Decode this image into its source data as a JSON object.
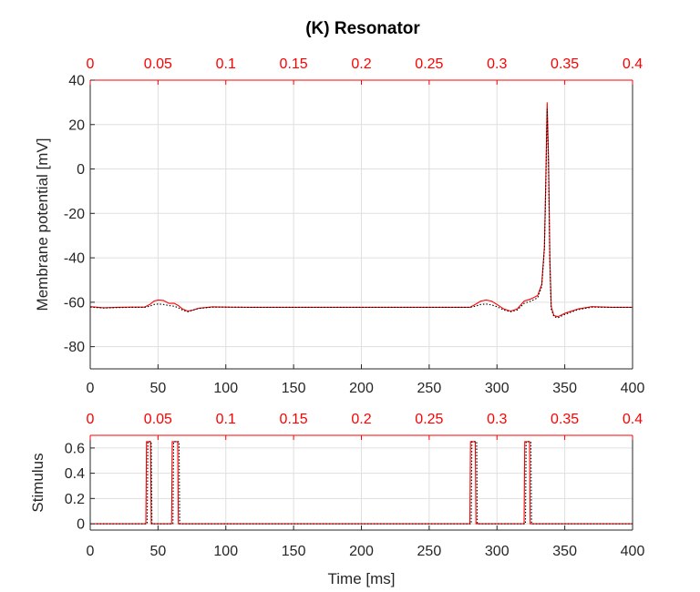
{
  "chart_data": [
    {
      "type": "line",
      "title": "(K) Resonator",
      "xlabel": "",
      "ylabel": "Membrane potential [mV]",
      "xlim": [
        0,
        400
      ],
      "ylim": [
        -90,
        40
      ],
      "xticks": [
        "0",
        "50",
        "100",
        "150",
        "200",
        "250",
        "300",
        "350",
        "400"
      ],
      "yticks": [
        "-80",
        "-60",
        "-40",
        "-20",
        "0",
        "20",
        "40"
      ],
      "top_axis": {
        "xlim": [
          0,
          0.4
        ],
        "ticks": [
          "0",
          "0.05",
          "0.1",
          "0.15",
          "0.2",
          "0.25",
          "0.3",
          "0.35",
          "0.4"
        ],
        "color": "#ff0000"
      },
      "grid": true,
      "series": [
        {
          "color": "#ff0000",
          "style": "solid",
          "x": [
            0,
            10,
            20,
            30,
            40,
            44,
            47,
            50,
            54,
            58,
            62,
            65,
            68,
            72,
            76,
            80,
            90,
            100,
            120,
            150,
            200,
            250,
            270,
            280,
            284,
            288,
            292,
            296,
            300,
            305,
            310,
            315,
            320,
            325,
            330,
            333,
            335,
            336,
            337,
            338,
            339,
            340,
            342,
            345,
            350,
            360,
            370,
            385,
            400
          ],
          "y": [
            -62,
            -62.5,
            -62.3,
            -62.2,
            -62.2,
            -61,
            -59.5,
            -59,
            -59.2,
            -60.5,
            -60.5,
            -61.5,
            -63,
            -64,
            -63.5,
            -62.7,
            -62.1,
            -62.2,
            -62.3,
            -62.3,
            -62.3,
            -62.3,
            -62.3,
            -62.3,
            -61,
            -59.5,
            -59,
            -59.5,
            -61,
            -63,
            -64,
            -63,
            -59.5,
            -58.5,
            -57,
            -52,
            -35,
            -5,
            30,
            5,
            -40,
            -62,
            -66,
            -66.5,
            -65,
            -63,
            -62,
            -62.3,
            -62.3
          ]
        },
        {
          "color": "#000000",
          "style": "dotted",
          "x": [
            0,
            10,
            20,
            30,
            40,
            44,
            47,
            50,
            54,
            58,
            62,
            65,
            68,
            72,
            76,
            80,
            90,
            100,
            120,
            150,
            200,
            250,
            270,
            280,
            284,
            288,
            292,
            296,
            300,
            305,
            310,
            315,
            320,
            325,
            330,
            333,
            335,
            336,
            337,
            338,
            339,
            340,
            342,
            345,
            350,
            360,
            370,
            385,
            400
          ],
          "y": [
            -62.2,
            -62.6,
            -62.4,
            -62.3,
            -62.3,
            -61.8,
            -61,
            -60.8,
            -61,
            -61.5,
            -61.8,
            -62.5,
            -63.5,
            -64.3,
            -63.5,
            -62.8,
            -62.2,
            -62.2,
            -62.3,
            -62.3,
            -62.3,
            -62.3,
            -62.3,
            -62.3,
            -61.8,
            -61,
            -60.8,
            -61.2,
            -62,
            -63.5,
            -64.3,
            -63.5,
            -60.5,
            -59.5,
            -58,
            -53,
            -36,
            -8,
            27,
            2,
            -42,
            -63,
            -66.5,
            -67,
            -65.5,
            -63.3,
            -62.2,
            -62.3,
            -62.3
          ]
        }
      ]
    },
    {
      "type": "line",
      "title": "",
      "xlabel": "Time [ms]",
      "ylabel": "Stimulus",
      "xlim": [
        0,
        400
      ],
      "ylim": [
        -0.05,
        0.7
      ],
      "xticks": [
        "0",
        "50",
        "100",
        "150",
        "200",
        "250",
        "300",
        "350",
        "400"
      ],
      "yticks": [
        "0",
        "0.2",
        "0.4",
        "0.6"
      ],
      "top_axis": {
        "xlim": [
          0,
          0.4
        ],
        "ticks": [
          "0",
          "0.05",
          "0.1",
          "0.15",
          "0.2",
          "0.25",
          "0.3",
          "0.35",
          "0.4"
        ],
        "color": "#ff0000"
      },
      "grid": true,
      "series": [
        {
          "color": "#ff0000",
          "style": "solid",
          "x": [
            0,
            41,
            41.5,
            44.5,
            45,
            60,
            60.5,
            64.5,
            65,
            280,
            280.5,
            284,
            284.5,
            320,
            320.5,
            324,
            324.5,
            400
          ],
          "y": [
            0,
            0,
            0.65,
            0.65,
            0,
            0,
            0.65,
            0.65,
            0,
            0,
            0.65,
            0.65,
            0,
            0,
            0.65,
            0.65,
            0,
            0
          ]
        },
        {
          "color": "#000000",
          "style": "dotted",
          "x": [
            0,
            42,
            42.5,
            45,
            45.5,
            61,
            61.5,
            65.5,
            66,
            281,
            281.5,
            285,
            285.5,
            321,
            321.5,
            325,
            325.5,
            400
          ],
          "y": [
            0,
            0,
            0.65,
            0.65,
            0,
            0,
            0.65,
            0.65,
            0,
            0,
            0.65,
            0.65,
            0,
            0,
            0.65,
            0.65,
            0,
            0
          ]
        }
      ]
    }
  ]
}
